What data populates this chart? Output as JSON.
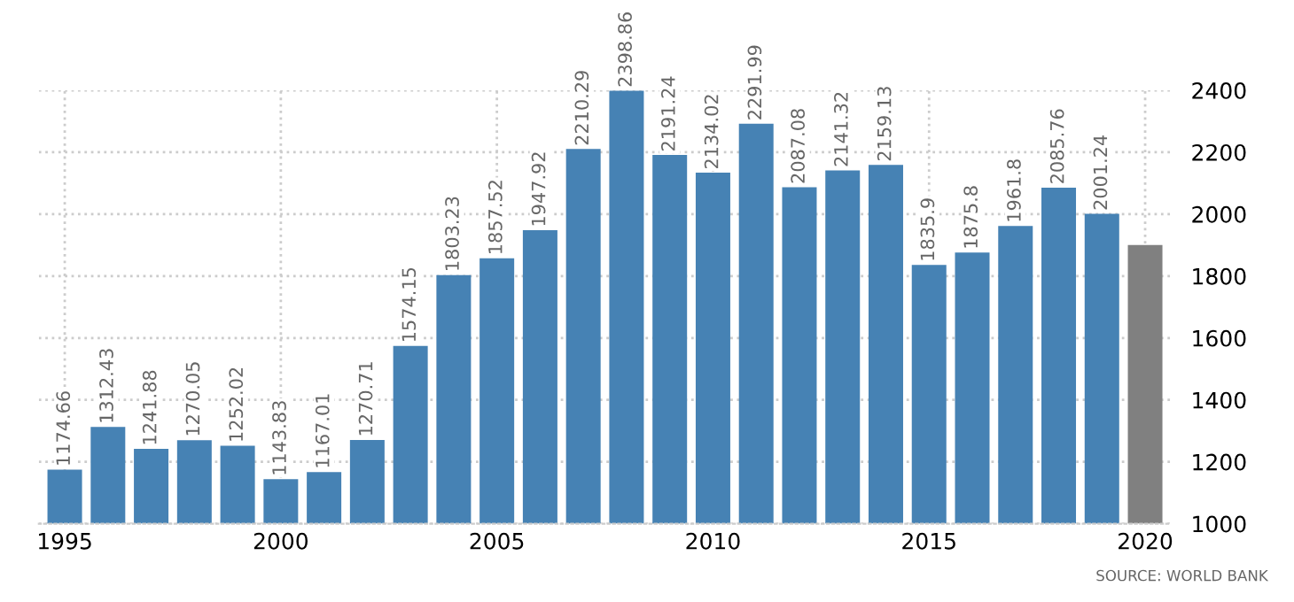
{
  "chart_data": {
    "type": "bar",
    "categories": [
      "1995",
      null,
      null,
      null,
      null,
      "2000",
      null,
      null,
      null,
      null,
      "2005",
      null,
      null,
      null,
      null,
      "2010",
      null,
      null,
      null,
      null,
      "2015",
      null,
      null,
      null,
      null,
      "2020"
    ],
    "values": [
      1174.66,
      1312.43,
      1241.88,
      1270.05,
      1252.02,
      1143.83,
      1167.01,
      1270.71,
      1574.15,
      1803.23,
      1857.52,
      1947.92,
      2210.29,
      2398.86,
      2191.24,
      2134.02,
      2291.99,
      2087.08,
      2141.32,
      2159.13,
      1835.9,
      1875.8,
      1961.8,
      2085.76,
      2001.24,
      1900
    ],
    "value_labels": [
      "1174.66",
      "1312.43",
      "1241.88",
      "1270.05",
      "1252.02",
      "1143.83",
      "1167.01",
      "1270.71",
      "1574.15",
      "1803.23",
      "1857.52",
      "1947.92",
      "2210.29",
      "2398.86",
      "2191.24",
      "2134.02",
      "2291.99",
      "2087.08",
      "2141.32",
      "2159.13",
      "1835.9",
      "1875.8",
      "1961.8",
      "2085.76",
      "2001.24",
      null
    ],
    "colors": [
      "#4682b4",
      "#4682b4",
      "#4682b4",
      "#4682b4",
      "#4682b4",
      "#4682b4",
      "#4682b4",
      "#4682b4",
      "#4682b4",
      "#4682b4",
      "#4682b4",
      "#4682b4",
      "#4682b4",
      "#4682b4",
      "#4682b4",
      "#4682b4",
      "#4682b4",
      "#4682b4",
      "#4682b4",
      "#4682b4",
      "#4682b4",
      "#4682b4",
      "#4682b4",
      "#4682b4",
      "#4682b4",
      "#808080"
    ],
    "ylim": [
      1000,
      2400
    ],
    "yticks": [
      1000,
      1200,
      1400,
      1600,
      1800,
      2000,
      2200,
      2400
    ],
    "grid": true,
    "annotations": [
      "SOURCE: WORLD BANK"
    ]
  }
}
